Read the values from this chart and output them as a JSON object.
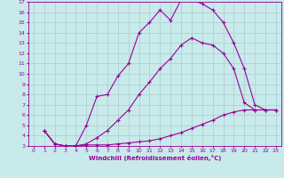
{
  "title": "",
  "xlabel": "Windchill (Refroidissement éolien,°C)",
  "bg_color": "#c8eaea",
  "line_color": "#990099",
  "grid_color": "#aacccc",
  "xlim": [
    -0.5,
    23.5
  ],
  "ylim": [
    3,
    17
  ],
  "yticks": [
    3,
    4,
    5,
    6,
    7,
    8,
    9,
    10,
    11,
    12,
    13,
    14,
    15,
    16,
    17
  ],
  "xticks": [
    0,
    1,
    2,
    3,
    4,
    5,
    6,
    7,
    8,
    9,
    10,
    11,
    12,
    13,
    14,
    15,
    16,
    17,
    18,
    19,
    20,
    21,
    22,
    23
  ],
  "line1_x": [
    1,
    2,
    3,
    4,
    5,
    6,
    7,
    8,
    9,
    10,
    11,
    12,
    13,
    14,
    15,
    16,
    17,
    18,
    19,
    20,
    21,
    22,
    23
  ],
  "line1_y": [
    4.5,
    3.2,
    3.0,
    3.0,
    5.0,
    7.8,
    8.0,
    9.8,
    11.0,
    14.0,
    15.0,
    16.2,
    15.2,
    17.2,
    17.2,
    16.8,
    16.2,
    15.0,
    13.0,
    10.5,
    7.0,
    6.5,
    6.5
  ],
  "line2_x": [
    1,
    2,
    3,
    4,
    5,
    6,
    7,
    8,
    9,
    10,
    11,
    12,
    13,
    14,
    15,
    16,
    17,
    18,
    19,
    20,
    21,
    22,
    23
  ],
  "line2_y": [
    4.5,
    3.2,
    3.0,
    3.0,
    3.1,
    3.1,
    3.1,
    3.2,
    3.3,
    3.4,
    3.5,
    3.7,
    4.0,
    4.3,
    4.7,
    5.1,
    5.5,
    6.0,
    6.3,
    6.5,
    6.5,
    6.5,
    6.5
  ],
  "line3_x": [
    1,
    2,
    3,
    4,
    5,
    6,
    7,
    8,
    9,
    10,
    11,
    12,
    13,
    14,
    15,
    16,
    17,
    18,
    19,
    20,
    21,
    22,
    23
  ],
  "line3_y": [
    4.5,
    3.2,
    3.0,
    3.0,
    3.2,
    3.8,
    4.5,
    5.5,
    6.5,
    8.0,
    9.2,
    10.5,
    11.5,
    12.8,
    13.5,
    13.0,
    12.8,
    12.0,
    10.5,
    7.2,
    6.5,
    6.5,
    6.5
  ]
}
